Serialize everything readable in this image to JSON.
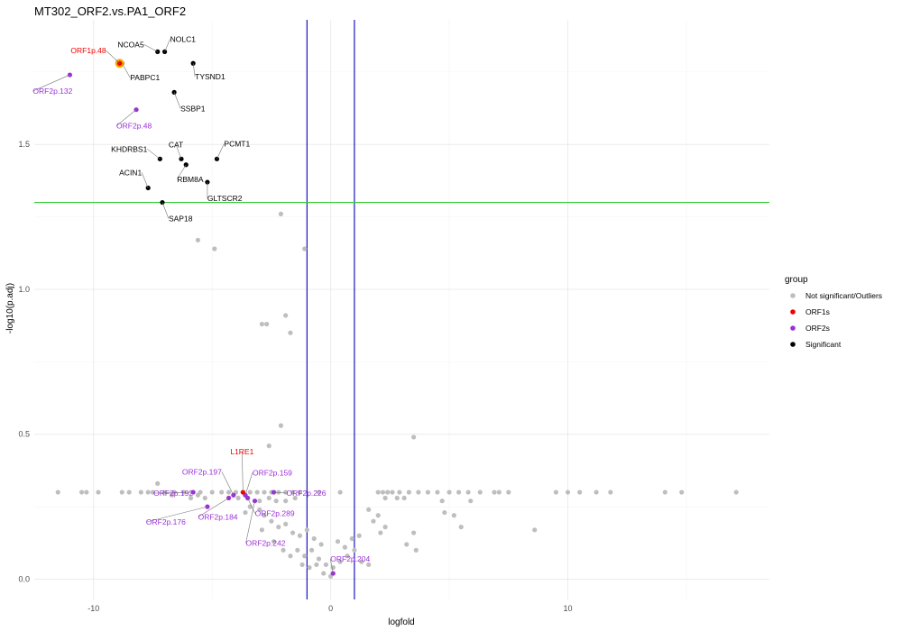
{
  "chart_data": {
    "type": "scatter",
    "title": "MT302_ORF2.vs.PA1_ORF2",
    "xlabel": "logfold",
    "ylabel": "-log10(p.adj)",
    "xlim": [
      -12.5,
      18.5
    ],
    "ylim": [
      -0.07,
      1.93
    ],
    "x_ticks": [
      -10,
      0,
      10
    ],
    "y_ticks": [
      0.0,
      0.5,
      1.0,
      1.5
    ],
    "x_tick_labels": [
      "-10",
      "0",
      "10"
    ],
    "y_tick_labels": [
      "0.0",
      "0.5",
      "1.0",
      "1.5"
    ],
    "grid": true,
    "vlines": [
      -1,
      1
    ],
    "hline": 1.3,
    "colors": {
      "Not significant/Outliers": "#bebebe",
      "ORF1s": "#ee0000",
      "ORF2s": "#9b30d9",
      "Significant": "#000000",
      "vline": "#0000bb",
      "hline": "#33cc33",
      "highlight": "#ffa500"
    },
    "legend": {
      "title": "group",
      "position": "right",
      "entries": [
        "Not significant/Outliers",
        "ORF1s",
        "ORF2s",
        "Significant"
      ]
    },
    "series": [
      {
        "name": "Significant",
        "points": [
          {
            "x": -7.0,
            "y": 1.82,
            "label": "NOLC1"
          },
          {
            "x": -7.3,
            "y": 1.82,
            "label": "NCOA5"
          },
          {
            "x": -5.8,
            "y": 1.78,
            "label": "TYSND1"
          },
          {
            "x": -8.8,
            "y": 1.78,
            "label": "PABPC1"
          },
          {
            "x": -6.6,
            "y": 1.68,
            "label": "SSBP1"
          },
          {
            "x": -4.8,
            "y": 1.45,
            "label": "PCMT1"
          },
          {
            "x": -6.3,
            "y": 1.45,
            "label": "CAT"
          },
          {
            "x": -7.2,
            "y": 1.45,
            "label": "KHDRBS1"
          },
          {
            "x": -6.1,
            "y": 1.43,
            "label": "RBM8A"
          },
          {
            "x": -5.2,
            "y": 1.37,
            "label": "GLTSCR2"
          },
          {
            "x": -7.7,
            "y": 1.35,
            "label": "ACIN1"
          },
          {
            "x": -7.1,
            "y": 1.3,
            "label": "SAP18"
          }
        ]
      },
      {
        "name": "ORF1s",
        "points": [
          {
            "x": -8.9,
            "y": 1.78,
            "label": "ORF1p.48"
          },
          {
            "x": -3.7,
            "y": 0.3,
            "label": "L1RE1"
          }
        ]
      },
      {
        "name": "ORF2s",
        "points": [
          {
            "x": -11.0,
            "y": 1.74,
            "label": "ORF2p.132"
          },
          {
            "x": -8.2,
            "y": 1.62,
            "label": "ORF2p.48"
          },
          {
            "x": -4.1,
            "y": 0.29,
            "label": "ORF2p.197"
          },
          {
            "x": -3.6,
            "y": 0.29,
            "label": "ORF2p.159"
          },
          {
            "x": -5.8,
            "y": 0.3,
            "label": "ORF2p.192"
          },
          {
            "x": -2.4,
            "y": 0.3,
            "label": "ORF2p.226"
          },
          {
            "x": -5.2,
            "y": 0.25,
            "label": "ORF2p.176"
          },
          {
            "x": -4.3,
            "y": 0.28,
            "label": "ORF2p.184"
          },
          {
            "x": -3.5,
            "y": 0.28,
            "label": "ORF2p.289"
          },
          {
            "x": -3.2,
            "y": 0.27,
            "label": "ORF2p.242"
          },
          {
            "x": 0.1,
            "y": 0.02,
            "label": "ORF2p.204"
          }
        ]
      },
      {
        "name": "Not significant/Outliers",
        "points": [
          {
            "x": -2.1,
            "y": 1.26
          },
          {
            "x": -1.1,
            "y": 1.14
          },
          {
            "x": -5.6,
            "y": 1.17
          },
          {
            "x": -4.9,
            "y": 1.14
          },
          {
            "x": -1.9,
            "y": 0.91
          },
          {
            "x": -2.9,
            "y": 0.88
          },
          {
            "x": -2.7,
            "y": 0.88
          },
          {
            "x": -1.7,
            "y": 0.85
          },
          {
            "x": -2.1,
            "y": 0.53
          },
          {
            "x": 3.5,
            "y": 0.49
          },
          {
            "x": -2.6,
            "y": 0.46
          },
          {
            "x": -7.3,
            "y": 0.33
          },
          {
            "x": -11.5,
            "y": 0.3
          },
          {
            "x": -10.5,
            "y": 0.3
          },
          {
            "x": -10.3,
            "y": 0.3
          },
          {
            "x": -9.8,
            "y": 0.3
          },
          {
            "x": -8.8,
            "y": 0.3
          },
          {
            "x": -8.5,
            "y": 0.3
          },
          {
            "x": -8.0,
            "y": 0.3
          },
          {
            "x": -7.7,
            "y": 0.3
          },
          {
            "x": -7.5,
            "y": 0.3
          },
          {
            "x": -7.0,
            "y": 0.3
          },
          {
            "x": -6.6,
            "y": 0.3
          },
          {
            "x": -6.2,
            "y": 0.3
          },
          {
            "x": -5.5,
            "y": 0.3
          },
          {
            "x": -5.0,
            "y": 0.3
          },
          {
            "x": -4.6,
            "y": 0.3
          },
          {
            "x": -4.3,
            "y": 0.3
          },
          {
            "x": -4.0,
            "y": 0.3
          },
          {
            "x": -3.7,
            "y": 0.3
          },
          {
            "x": -3.4,
            "y": 0.3
          },
          {
            "x": -3.1,
            "y": 0.3
          },
          {
            "x": -2.8,
            "y": 0.3
          },
          {
            "x": -2.5,
            "y": 0.3
          },
          {
            "x": -2.2,
            "y": 0.3
          },
          {
            "x": -1.9,
            "y": 0.3
          },
          {
            "x": -1.6,
            "y": 0.3
          },
          {
            "x": -1.3,
            "y": 0.3
          },
          {
            "x": -0.5,
            "y": 0.3
          },
          {
            "x": 0.4,
            "y": 0.3
          },
          {
            "x": 2.0,
            "y": 0.3
          },
          {
            "x": 2.2,
            "y": 0.3
          },
          {
            "x": 2.4,
            "y": 0.3
          },
          {
            "x": 2.6,
            "y": 0.3
          },
          {
            "x": 2.9,
            "y": 0.3
          },
          {
            "x": 3.3,
            "y": 0.3
          },
          {
            "x": 3.7,
            "y": 0.3
          },
          {
            "x": 4.1,
            "y": 0.3
          },
          {
            "x": 4.5,
            "y": 0.3
          },
          {
            "x": 5.0,
            "y": 0.3
          },
          {
            "x": 5.4,
            "y": 0.3
          },
          {
            "x": 5.8,
            "y": 0.3
          },
          {
            "x": 6.3,
            "y": 0.3
          },
          {
            "x": 6.9,
            "y": 0.3
          },
          {
            "x": 7.1,
            "y": 0.3
          },
          {
            "x": 7.5,
            "y": 0.3
          },
          {
            "x": 9.5,
            "y": 0.3
          },
          {
            "x": 10.0,
            "y": 0.3
          },
          {
            "x": 10.5,
            "y": 0.3
          },
          {
            "x": 11.2,
            "y": 0.3
          },
          {
            "x": 11.8,
            "y": 0.3
          },
          {
            "x": 14.1,
            "y": 0.3
          },
          {
            "x": 14.8,
            "y": 0.3
          },
          {
            "x": 17.1,
            "y": 0.3
          },
          {
            "x": -6.7,
            "y": 0.29
          },
          {
            "x": -5.9,
            "y": 0.28
          },
          {
            "x": -5.6,
            "y": 0.29
          },
          {
            "x": -5.3,
            "y": 0.28
          },
          {
            "x": -3.9,
            "y": 0.28
          },
          {
            "x": -3.0,
            "y": 0.27
          },
          {
            "x": -2.6,
            "y": 0.28
          },
          {
            "x": -2.3,
            "y": 0.27
          },
          {
            "x": -1.9,
            "y": 0.27
          },
          {
            "x": -1.5,
            "y": 0.28
          },
          {
            "x": 2.3,
            "y": 0.28
          },
          {
            "x": 2.8,
            "y": 0.28
          },
          {
            "x": 3.1,
            "y": 0.28
          },
          {
            "x": 4.7,
            "y": 0.27
          },
          {
            "x": 5.9,
            "y": 0.27
          },
          {
            "x": 4.8,
            "y": 0.23
          },
          {
            "x": 5.2,
            "y": 0.22
          },
          {
            "x": 5.5,
            "y": 0.18
          },
          {
            "x": 2.0,
            "y": 0.22
          },
          {
            "x": 2.3,
            "y": 0.18
          },
          {
            "x": 2.1,
            "y": 0.16
          },
          {
            "x": 1.8,
            "y": 0.2
          },
          {
            "x": 1.6,
            "y": 0.24
          },
          {
            "x": 3.5,
            "y": 0.16
          },
          {
            "x": 3.2,
            "y": 0.12
          },
          {
            "x": 8.6,
            "y": 0.17
          },
          {
            "x": 3.6,
            "y": 0.1
          },
          {
            "x": -3.0,
            "y": 0.24
          },
          {
            "x": -2.8,
            "y": 0.22
          },
          {
            "x": -2.5,
            "y": 0.2
          },
          {
            "x": -2.2,
            "y": 0.18
          },
          {
            "x": -1.9,
            "y": 0.19
          },
          {
            "x": -1.6,
            "y": 0.16
          },
          {
            "x": -1.3,
            "y": 0.15
          },
          {
            "x": -1.0,
            "y": 0.17
          },
          {
            "x": -0.7,
            "y": 0.14
          },
          {
            "x": -0.4,
            "y": 0.12
          },
          {
            "x": -2.4,
            "y": 0.13
          },
          {
            "x": -2.0,
            "y": 0.1
          },
          {
            "x": -1.7,
            "y": 0.08
          },
          {
            "x": -1.4,
            "y": 0.1
          },
          {
            "x": -1.1,
            "y": 0.08
          },
          {
            "x": -0.8,
            "y": 0.1
          },
          {
            "x": -0.5,
            "y": 0.07
          },
          {
            "x": -0.2,
            "y": 0.05
          },
          {
            "x": 0.1,
            "y": 0.04
          },
          {
            "x": 0.4,
            "y": 0.06
          },
          {
            "x": 0.7,
            "y": 0.08
          },
          {
            "x": 1.0,
            "y": 0.1
          },
          {
            "x": 1.3,
            "y": 0.06
          },
          {
            "x": 1.6,
            "y": 0.05
          },
          {
            "x": 0.9,
            "y": 0.14
          },
          {
            "x": 1.2,
            "y": 0.15
          },
          {
            "x": 0.6,
            "y": 0.11
          },
          {
            "x": 0.3,
            "y": 0.13
          },
          {
            "x": -1.2,
            "y": 0.05
          },
          {
            "x": -0.9,
            "y": 0.04
          },
          {
            "x": -0.6,
            "y": 0.05
          },
          {
            "x": -0.3,
            "y": 0.02
          },
          {
            "x": 0.0,
            "y": 0.01
          },
          {
            "x": -3.4,
            "y": 0.25
          },
          {
            "x": -3.6,
            "y": 0.23
          },
          {
            "x": -2.9,
            "y": 0.17
          }
        ]
      }
    ]
  }
}
